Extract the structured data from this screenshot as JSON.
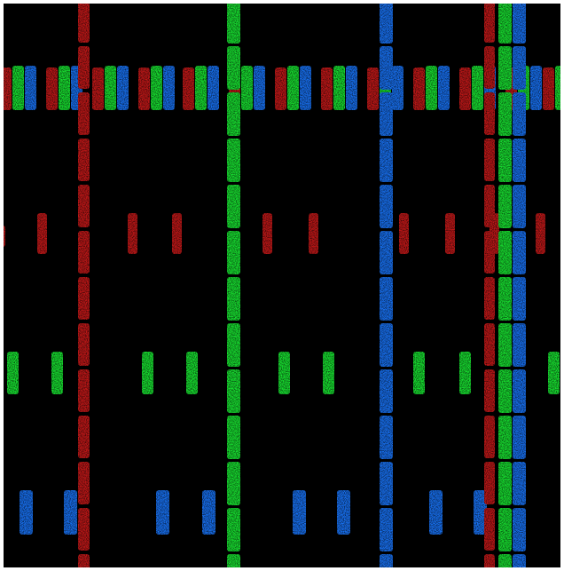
{
  "image": {
    "subject": "subpixel-pattern-photo",
    "background_color": "#000000",
    "frame_color": "#ffffff",
    "channels": {
      "red": "#c01818",
      "green": "#18e030",
      "blue": "#1870f0"
    }
  }
}
